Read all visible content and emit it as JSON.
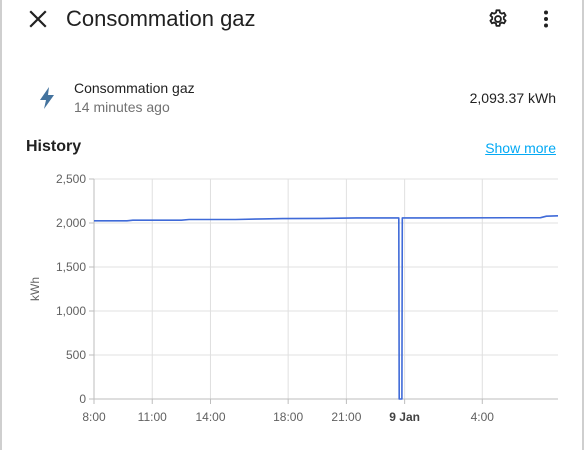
{
  "dialog": {
    "title": "Consommation gaz",
    "close_icon": "close-icon",
    "settings_icon": "gear-icon",
    "menu_icon": "more-vert-icon"
  },
  "entity": {
    "icon": "flash-icon",
    "name": "Consommation gaz",
    "last_changed": "14 minutes ago",
    "state": "2,093.37 kWh"
  },
  "history": {
    "title": "History",
    "show_more_label": "Show more"
  },
  "colors": {
    "accent": "#03a9f4",
    "series": "#3f6ad8",
    "icon": "#44739e"
  },
  "chart_data": {
    "type": "line",
    "title": "",
    "xlabel": "",
    "ylabel": "kWh",
    "ylim": [
      0,
      2500
    ],
    "y_ticks": [
      0,
      500,
      1000,
      1500,
      2000,
      2500
    ],
    "y_tick_labels": [
      "0",
      "500",
      "1,000",
      "1,500",
      "2,000",
      "2,500"
    ],
    "x_tick_labels": [
      "8:00",
      "11:00",
      "14:00",
      "18:00",
      "21:00",
      "9 Jan",
      "4:00"
    ],
    "x_tick_hours": [
      8,
      11,
      14,
      18,
      21,
      24,
      28
    ],
    "x_tick_bold": [
      false,
      false,
      false,
      false,
      false,
      true,
      false
    ],
    "xlim_hours": [
      8,
      31.9
    ],
    "grid": true,
    "legend": "none",
    "series": [
      {
        "points": [
          [
            8.0,
            2025
          ],
          [
            9.7,
            2025
          ],
          [
            10.0,
            2032
          ],
          [
            12.5,
            2032
          ],
          [
            12.9,
            2040
          ],
          [
            15.3,
            2040
          ],
          [
            16.7,
            2047
          ],
          [
            17.7,
            2050
          ],
          [
            19.7,
            2052
          ],
          [
            21.5,
            2058
          ],
          [
            23.7,
            2058
          ],
          [
            23.72,
            0
          ],
          [
            23.86,
            0
          ],
          [
            23.88,
            2058
          ],
          [
            25.5,
            2058
          ],
          [
            31.0,
            2060
          ],
          [
            31.3,
            2077
          ],
          [
            31.9,
            2082
          ]
        ]
      }
    ]
  }
}
